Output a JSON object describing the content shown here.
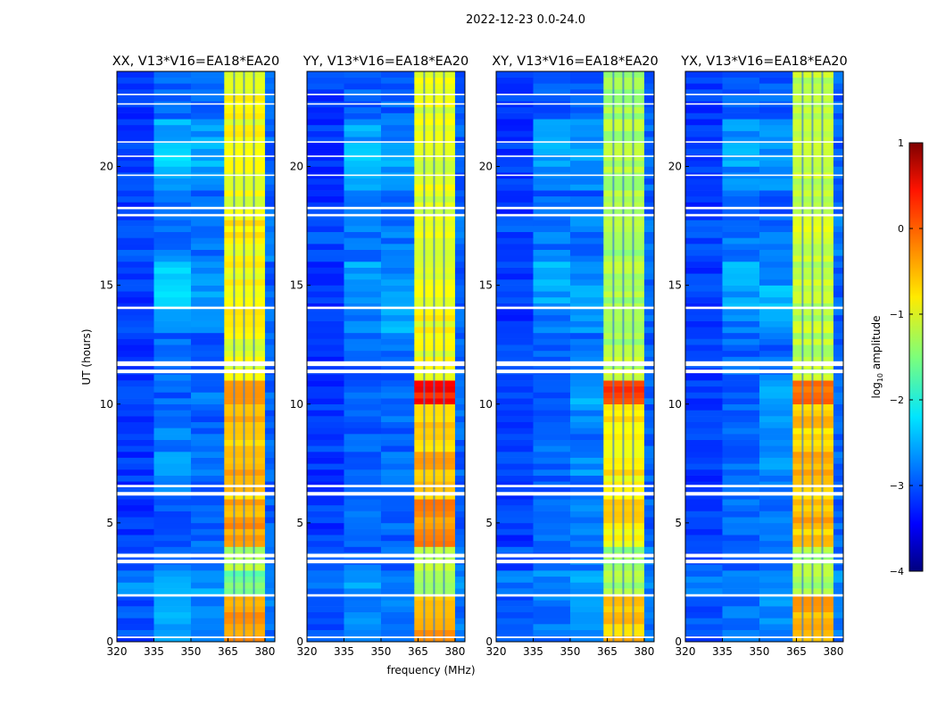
{
  "chart_data": {
    "type": "heatmap",
    "title": "2022-12-23 0.0-24.0",
    "xlabel": "frequency (MHz)",
    "ylabel": "UT (hours)",
    "xlim": [
      320,
      384
    ],
    "ylim": [
      0,
      24
    ],
    "xticks": [
      320,
      335,
      350,
      365,
      380
    ],
    "yticks": [
      0,
      5,
      10,
      15,
      20
    ],
    "freq_bin_edges": [
      320,
      335,
      350,
      363.5,
      380,
      384
    ],
    "ut_bin_edges_step_hours": 1,
    "channel_gaps_mhz": [
      367.5,
      371.5,
      375.5
    ],
    "flagged_ut_ranges": [
      [
        0.15,
        0.22
      ],
      [
        1.9,
        2.0
      ],
      [
        3.3,
        3.45
      ],
      [
        3.55,
        3.7
      ],
      [
        6.15,
        6.3
      ],
      [
        6.5,
        6.6
      ],
      [
        11.3,
        11.45
      ],
      [
        11.6,
        11.8
      ],
      [
        14.0,
        14.1
      ],
      [
        17.9,
        18.0
      ],
      [
        18.2,
        18.3
      ],
      [
        19.6,
        19.66
      ],
      [
        20.4,
        20.46
      ],
      [
        21.0,
        21.06
      ],
      [
        22.6,
        22.66
      ],
      [
        23.0,
        23.06
      ]
    ],
    "colorbar": {
      "label": "log10 amplitude",
      "label_base": "log",
      "label_sub": "10",
      "label_rest": " amplitude",
      "range": [
        -4,
        1
      ],
      "ticks": [
        "1",
        "0",
        "−1",
        "−2",
        "−3",
        "−4"
      ],
      "tick_values": [
        1,
        0,
        -1,
        -2,
        -3,
        -4
      ],
      "colormap": "jet"
    },
    "panels": [
      {
        "title": "XX, V13*V16=EA18*EA20",
        "z": [
          [
            -3.0,
            -2.6,
            -2.8,
            -0.4,
            -2.8
          ],
          [
            -3.0,
            -2.6,
            -2.8,
            -0.4,
            -2.8
          ],
          [
            -2.7,
            -2.5,
            -2.6,
            -1.6,
            -2.7
          ],
          [
            -3.0,
            -2.9,
            -2.9,
            -1.3,
            -2.8
          ],
          [
            -3.1,
            -2.9,
            -2.9,
            -0.4,
            -2.9
          ],
          [
            -3.1,
            -2.9,
            -2.9,
            -0.5,
            -2.9
          ],
          [
            -3.1,
            -2.8,
            -2.9,
            -0.6,
            -2.9
          ],
          [
            -3.1,
            -2.7,
            -2.8,
            -0.5,
            -2.9
          ],
          [
            -3.1,
            -2.8,
            -2.9,
            -0.6,
            -2.9
          ],
          [
            -3.1,
            -2.9,
            -2.9,
            -0.5,
            -2.9
          ],
          [
            -3.1,
            -2.9,
            -2.8,
            -0.2,
            -2.9
          ],
          [
            -3.1,
            -2.9,
            -2.9,
            -1.0,
            -2.9
          ],
          [
            -3.1,
            -2.9,
            -2.9,
            -1.0,
            -2.9
          ],
          [
            -3.1,
            -2.6,
            -2.7,
            -0.9,
            -2.9
          ],
          [
            -3.1,
            -2.4,
            -2.6,
            -1.0,
            -2.9
          ],
          [
            -3.1,
            -2.3,
            -2.7,
            -0.9,
            -2.9
          ],
          [
            -3.0,
            -2.8,
            -2.8,
            -0.9,
            -2.8
          ],
          [
            -3.0,
            -2.8,
            -2.8,
            -0.8,
            -2.8
          ],
          [
            -3.1,
            -2.9,
            -2.9,
            -1.0,
            -2.9
          ],
          [
            -3.1,
            -2.5,
            -2.6,
            -0.9,
            -2.9
          ],
          [
            -3.1,
            -2.4,
            -2.5,
            -0.9,
            -2.9
          ],
          [
            -3.1,
            -2.5,
            -2.6,
            -0.9,
            -2.9
          ],
          [
            -3.1,
            -2.9,
            -2.9,
            -0.9,
            -2.9
          ],
          [
            -3.1,
            -2.9,
            -2.9,
            -0.9,
            -2.9
          ]
        ]
      },
      {
        "title": "YY, V13*V16=EA18*EA20",
        "z": [
          [
            -3.0,
            -2.7,
            -2.8,
            -0.4,
            -2.8
          ],
          [
            -3.0,
            -2.7,
            -2.8,
            -0.5,
            -2.8
          ],
          [
            -2.8,
            -2.6,
            -2.7,
            -1.4,
            -2.7
          ],
          [
            -3.0,
            -2.9,
            -2.9,
            -1.2,
            -2.8
          ],
          [
            -3.1,
            -2.9,
            -2.9,
            -0.3,
            -2.9
          ],
          [
            -3.1,
            -2.9,
            -2.9,
            -0.3,
            -2.9
          ],
          [
            -3.1,
            -2.9,
            -2.9,
            -0.7,
            -2.9
          ],
          [
            -3.1,
            -2.9,
            -2.8,
            -0.5,
            -2.9
          ],
          [
            -3.1,
            -2.9,
            -2.9,
            -0.7,
            -2.9
          ],
          [
            -3.1,
            -2.9,
            -2.9,
            -0.6,
            -2.9
          ],
          [
            -3.1,
            -2.9,
            -2.8,
            0.3,
            -2.9
          ],
          [
            -3.1,
            -2.9,
            -2.9,
            -0.9,
            -2.9
          ],
          [
            -3.1,
            -2.9,
            -2.9,
            -1.0,
            -2.9
          ],
          [
            -3.1,
            -2.7,
            -2.5,
            -0.9,
            -2.9
          ],
          [
            -3.1,
            -2.6,
            -2.5,
            -1.0,
            -2.9
          ],
          [
            -3.1,
            -2.6,
            -2.7,
            -1.0,
            -2.9
          ],
          [
            -3.0,
            -2.8,
            -2.8,
            -1.0,
            -2.8
          ],
          [
            -3.0,
            -2.8,
            -2.8,
            -0.9,
            -2.8
          ],
          [
            -3.1,
            -2.9,
            -2.9,
            -1.0,
            -2.9
          ],
          [
            -3.1,
            -2.6,
            -2.7,
            -1.0,
            -2.9
          ],
          [
            -3.1,
            -2.5,
            -2.6,
            -1.0,
            -2.9
          ],
          [
            -3.1,
            -2.6,
            -2.7,
            -1.0,
            -2.9
          ],
          [
            -3.1,
            -2.9,
            -2.9,
            -1.0,
            -2.9
          ],
          [
            -3.1,
            -2.9,
            -2.9,
            -1.0,
            -2.9
          ]
        ]
      },
      {
        "title": "XY, V13*V16=EA18*EA20",
        "z": [
          [
            -3.0,
            -2.8,
            -2.7,
            -0.6,
            -2.8
          ],
          [
            -3.0,
            -2.8,
            -2.7,
            -0.6,
            -2.8
          ],
          [
            -2.8,
            -2.7,
            -2.6,
            -1.3,
            -2.7
          ],
          [
            -3.0,
            -2.9,
            -2.8,
            -1.4,
            -2.8
          ],
          [
            -3.1,
            -2.9,
            -2.8,
            -0.8,
            -2.9
          ],
          [
            -3.1,
            -2.9,
            -2.8,
            -0.7,
            -2.9
          ],
          [
            -3.1,
            -2.9,
            -2.8,
            -0.9,
            -2.9
          ],
          [
            -3.1,
            -2.9,
            -2.7,
            -0.8,
            -2.9
          ],
          [
            -3.1,
            -2.9,
            -2.8,
            -0.9,
            -2.9
          ],
          [
            -3.1,
            -2.9,
            -2.7,
            -0.8,
            -2.9
          ],
          [
            -3.1,
            -2.9,
            -2.6,
            0.1,
            -2.9
          ],
          [
            -3.1,
            -2.9,
            -2.8,
            -1.2,
            -2.9
          ],
          [
            -3.1,
            -2.9,
            -2.9,
            -1.3,
            -2.9
          ],
          [
            -3.1,
            -2.8,
            -2.6,
            -1.3,
            -2.9
          ],
          [
            -3.1,
            -2.6,
            -2.5,
            -1.3,
            -2.9
          ],
          [
            -3.1,
            -2.5,
            -2.7,
            -1.3,
            -2.9
          ],
          [
            -3.0,
            -2.8,
            -2.8,
            -1.3,
            -2.8
          ],
          [
            -3.0,
            -2.8,
            -2.8,
            -1.2,
            -2.8
          ],
          [
            -3.1,
            -2.9,
            -2.9,
            -1.3,
            -2.9
          ],
          [
            -3.1,
            -2.7,
            -2.7,
            -1.3,
            -2.9
          ],
          [
            -3.1,
            -2.6,
            -2.6,
            -1.3,
            -2.9
          ],
          [
            -3.1,
            -2.7,
            -2.7,
            -1.3,
            -2.9
          ],
          [
            -3.1,
            -2.9,
            -2.9,
            -1.3,
            -2.9
          ],
          [
            -3.1,
            -2.9,
            -2.9,
            -1.3,
            -2.9
          ]
        ]
      },
      {
        "title": "YX, V13*V16=EA18*EA20",
        "z": [
          [
            -3.0,
            -2.8,
            -2.7,
            -0.5,
            -2.8
          ],
          [
            -3.0,
            -2.8,
            -2.7,
            -0.5,
            -2.8
          ],
          [
            -2.8,
            -2.7,
            -2.6,
            -1.3,
            -2.7
          ],
          [
            -3.0,
            -2.9,
            -2.8,
            -1.3,
            -2.8
          ],
          [
            -3.1,
            -2.9,
            -2.8,
            -0.6,
            -2.9
          ],
          [
            -3.1,
            -2.9,
            -2.8,
            -0.5,
            -2.9
          ],
          [
            -3.1,
            -2.9,
            -2.8,
            -0.6,
            -2.9
          ],
          [
            -3.1,
            -2.9,
            -2.7,
            -0.5,
            -2.9
          ],
          [
            -3.1,
            -2.9,
            -2.8,
            -0.7,
            -2.9
          ],
          [
            -3.1,
            -2.9,
            -2.7,
            -0.6,
            -2.9
          ],
          [
            -3.1,
            -2.9,
            -2.6,
            -0.2,
            -2.9
          ],
          [
            -3.1,
            -2.9,
            -2.8,
            -1.2,
            -2.9
          ],
          [
            -3.1,
            -2.9,
            -2.9,
            -1.2,
            -2.9
          ],
          [
            -3.1,
            -2.8,
            -2.6,
            -1.2,
            -2.9
          ],
          [
            -3.1,
            -2.6,
            -2.5,
            -1.2,
            -2.9
          ],
          [
            -3.1,
            -2.5,
            -2.7,
            -1.2,
            -2.9
          ],
          [
            -3.0,
            -2.8,
            -2.8,
            -1.2,
            -2.8
          ],
          [
            -3.0,
            -2.8,
            -2.8,
            -1.1,
            -2.8
          ],
          [
            -3.1,
            -2.9,
            -2.9,
            -1.2,
            -2.9
          ],
          [
            -3.1,
            -2.7,
            -2.7,
            -1.2,
            -2.9
          ],
          [
            -3.1,
            -2.6,
            -2.6,
            -1.2,
            -2.9
          ],
          [
            -3.1,
            -2.7,
            -2.7,
            -1.2,
            -2.9
          ],
          [
            -3.1,
            -2.9,
            -2.9,
            -1.2,
            -2.9
          ],
          [
            -3.1,
            -2.9,
            -2.9,
            -1.2,
            -2.9
          ]
        ]
      }
    ]
  }
}
